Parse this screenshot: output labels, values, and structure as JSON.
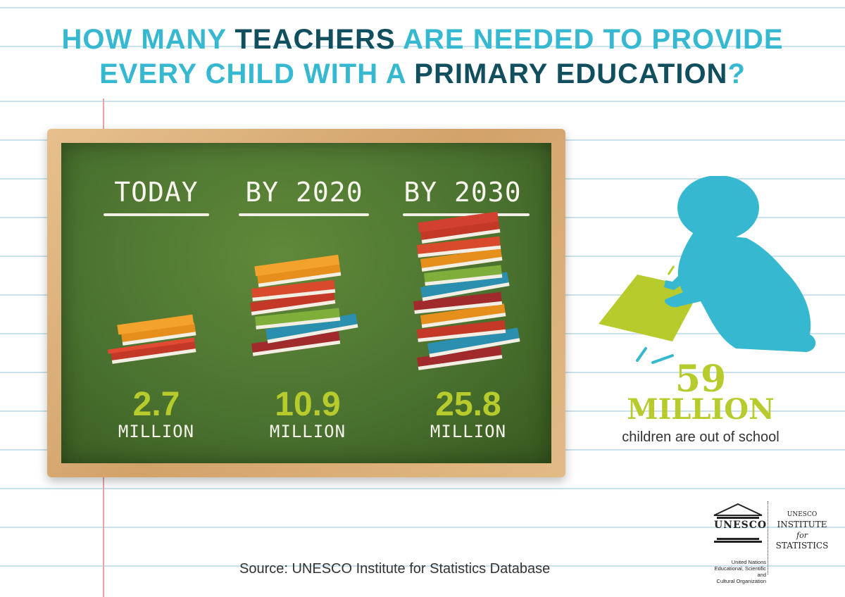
{
  "title": {
    "part1": "HOW MANY ",
    "part2": "TEACHERS",
    "part3": " ARE NEEDED TO PROVIDE",
    "part4": "EVERY CHILD WITH A ",
    "part5": "PRIMARY EDUCATION",
    "part6": "?"
  },
  "columns": [
    {
      "label": "TODAY",
      "value": "2.7",
      "unit": "MILLION"
    },
    {
      "label": "BY 2020",
      "value": "10.9",
      "unit": "MILLION"
    },
    {
      "label": "BY 2030",
      "value": "25.8",
      "unit": "MILLION"
    }
  ],
  "stat": {
    "value": "59",
    "unit": "MILLION",
    "text": "children are out of school"
  },
  "source": "Source: UNESCO Institute for Statistics Database",
  "logo": {
    "wordmark": "UNESCO",
    "subtitle_line1": "United Nations",
    "subtitle_line2": "Educational, Scientific and",
    "subtitle_line3": "Cultural Organization",
    "uis_top": "UNESCO",
    "uis_line1": "INSTITUTE",
    "uis_for": "for",
    "uis_line2": "STATISTICS"
  },
  "colors": {
    "accent": "#36b8d1",
    "dark": "#114f5e",
    "lime": "#b7cb2d",
    "board": "#4b7330"
  }
}
